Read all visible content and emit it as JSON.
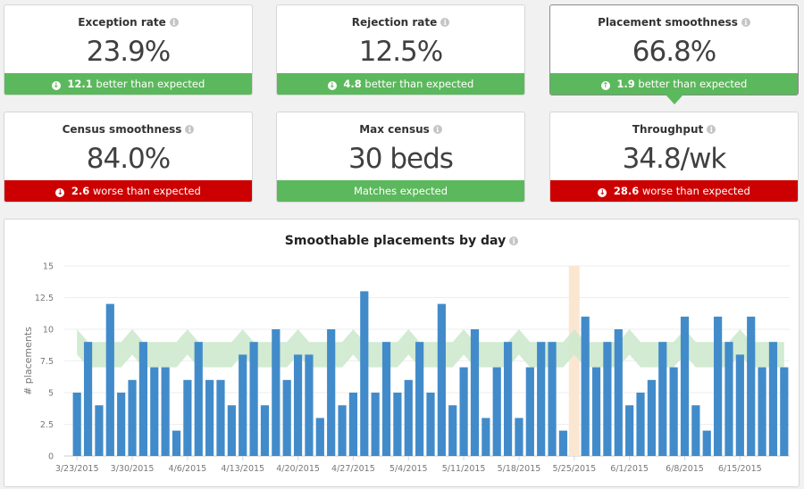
{
  "cards": [
    {
      "title": "Exception rate",
      "value": "23.9%",
      "delta": "12.1",
      "status_text": "better than expected",
      "direction": "down",
      "status": "good"
    },
    {
      "title": "Rejection rate",
      "value": "12.5%",
      "delta": "4.8",
      "status_text": "better than expected",
      "direction": "down",
      "status": "good"
    },
    {
      "title": "Placement smoothness",
      "value": "66.8%",
      "delta": "1.9",
      "status_text": "better than expected",
      "direction": "up",
      "status": "good",
      "selected": true
    },
    {
      "title": "Census smoothness",
      "value": "84.0%",
      "delta": "2.6",
      "status_text": "worse than expected",
      "direction": "down",
      "status": "bad"
    },
    {
      "title": "Max census",
      "value": "30 beds",
      "delta": "",
      "status_text": "Matches expected",
      "direction": "",
      "status": "good"
    },
    {
      "title": "Throughput",
      "value": "34.8/wk",
      "delta": "28.6",
      "status_text": "worse than expected",
      "direction": "down",
      "status": "bad"
    }
  ],
  "colors": {
    "good": "#5cb85c",
    "bad": "#cc0000",
    "bar": "#428bca",
    "band": "#cde9cd",
    "highlight": "#fbe6d2"
  },
  "chart_data": {
    "type": "bar",
    "title": "Smoothable placements by day",
    "ylabel": "# placements",
    "ylim": [
      0,
      15
    ],
    "yticks": [
      "0",
      "2.5",
      "5",
      "7.5",
      "10",
      "12.5",
      "15"
    ],
    "grid": true,
    "x": [
      "3/23/2015",
      "3/24/2015",
      "3/25/2015",
      "3/26/2015",
      "3/27/2015",
      "3/30/2015",
      "3/31/2015",
      "4/1/2015",
      "4/2/2015",
      "4/3/2015",
      "4/6/2015",
      "4/7/2015",
      "4/8/2015",
      "4/9/2015",
      "4/10/2015",
      "4/13/2015",
      "4/14/2015",
      "4/15/2015",
      "4/16/2015",
      "4/17/2015",
      "4/20/2015",
      "4/21/2015",
      "4/22/2015",
      "4/23/2015",
      "4/24/2015",
      "4/27/2015",
      "4/28/2015",
      "4/29/2015",
      "4/30/2015",
      "5/1/2015",
      "5/4/2015",
      "5/5/2015",
      "5/6/2015",
      "5/7/2015",
      "5/8/2015",
      "5/11/2015",
      "5/12/2015",
      "5/13/2015",
      "5/14/2015",
      "5/15/2015",
      "5/18/2015",
      "5/19/2015",
      "5/20/2015",
      "5/21/2015",
      "5/22/2015",
      "5/25/2015",
      "5/26/2015",
      "5/27/2015",
      "5/28/2015",
      "5/29/2015",
      "6/1/2015",
      "6/2/2015",
      "6/3/2015",
      "6/4/2015",
      "6/5/2015",
      "6/8/2015",
      "6/9/2015",
      "6/10/2015",
      "6/11/2015",
      "6/12/2015",
      "6/15/2015",
      "6/16/2015",
      "6/17/2015",
      "6/18/2015",
      "6/19/2015"
    ],
    "values": [
      5,
      9,
      4,
      12,
      5,
      6,
      9,
      7,
      7,
      2,
      6,
      9,
      6,
      6,
      4,
      8,
      9,
      4,
      10,
      6,
      8,
      8,
      3,
      10,
      4,
      5,
      13,
      5,
      9,
      5,
      6,
      9,
      5,
      12,
      4,
      7,
      10,
      3,
      7,
      9,
      3,
      7,
      9,
      9,
      2,
      null,
      11,
      7,
      9,
      10,
      4,
      5,
      6,
      9,
      7,
      11,
      4,
      2,
      11,
      9,
      8,
      11,
      7,
      9,
      7
    ],
    "expected_low": [
      8,
      7,
      7,
      7,
      7,
      8,
      7,
      7,
      7,
      7,
      8,
      7,
      7,
      7,
      7,
      8,
      7,
      7,
      7,
      7,
      8,
      7,
      7,
      7,
      7,
      8,
      7,
      7,
      7,
      7,
      8,
      7,
      7,
      7,
      7,
      8,
      7,
      7,
      7,
      7,
      8,
      7,
      7,
      7,
      7,
      8,
      7,
      7,
      7,
      7,
      8,
      7,
      7,
      7,
      7,
      8,
      7,
      7,
      7,
      7,
      8,
      7,
      7,
      7,
      7
    ],
    "expected_high": [
      10,
      9,
      9,
      9,
      9,
      10,
      9,
      9,
      9,
      9,
      10,
      9,
      9,
      9,
      9,
      10,
      9,
      9,
      9,
      9,
      10,
      9,
      9,
      9,
      9,
      10,
      9,
      9,
      9,
      9,
      10,
      9,
      9,
      9,
      9,
      10,
      9,
      9,
      9,
      9,
      10,
      9,
      9,
      9,
      9,
      10,
      9,
      9,
      9,
      9,
      10,
      9,
      9,
      9,
      9,
      10,
      9,
      9,
      9,
      9,
      10,
      9,
      9,
      9,
      9
    ],
    "highlighted_date": "5/25/2015",
    "xtick_labels": [
      "3/23/2015",
      "3/30/2015",
      "4/6/2015",
      "4/13/2015",
      "4/20/2015",
      "4/27/2015",
      "5/4/2015",
      "5/11/2015",
      "5/18/2015",
      "5/25/2015",
      "6/1/2015",
      "6/8/2015",
      "6/15/2015"
    ]
  }
}
